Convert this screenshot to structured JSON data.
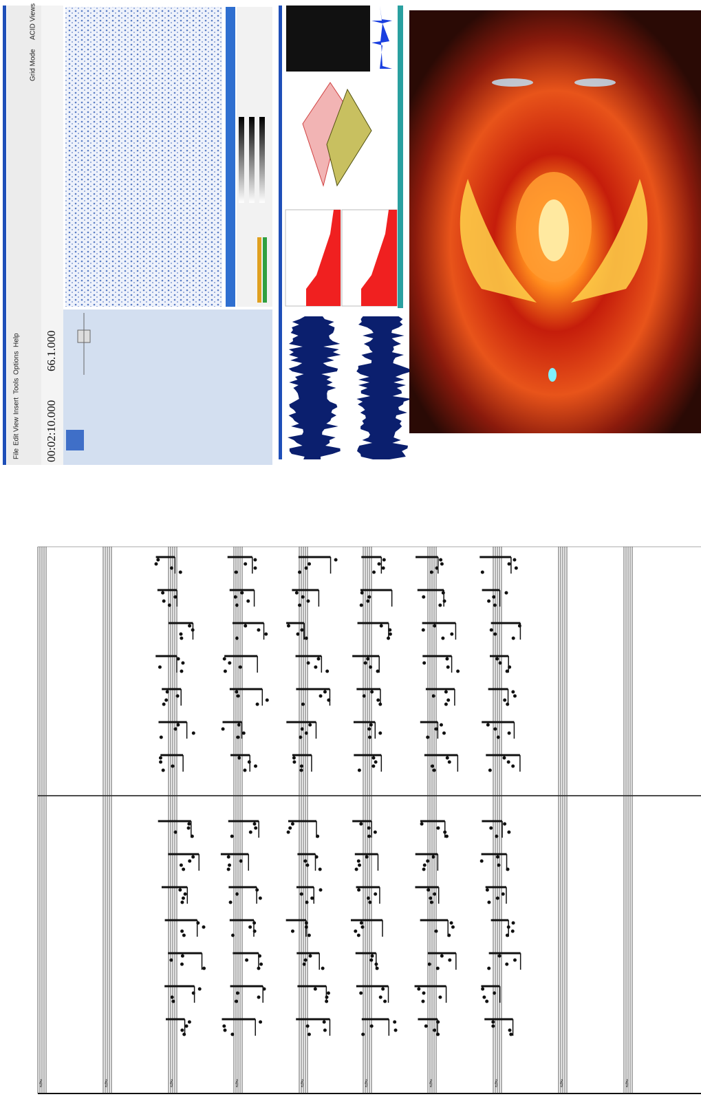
{
  "toolbar": {
    "menu": [
      "File",
      "Edit",
      "View",
      "Insert",
      "Tools",
      "Options",
      "Help"
    ],
    "buttons": [
      "Grid Mode",
      "ACID Views"
    ]
  },
  "time_display": {
    "position": "00:02:10.000",
    "measure": "66.1.000"
  }
}
